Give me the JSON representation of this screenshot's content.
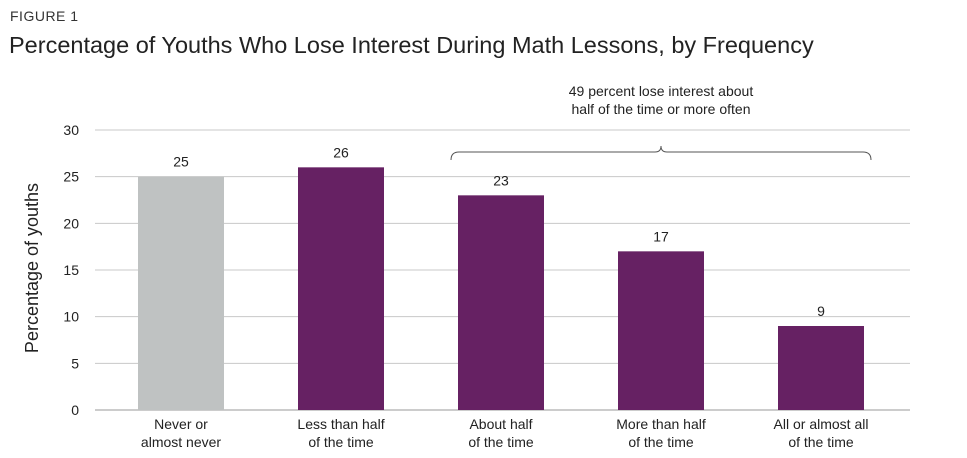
{
  "figure_label": "FIGURE 1",
  "chart_data": {
    "type": "bar",
    "title": "Percentage of Youths Who Lose Interest During Math Lessons, by Frequency",
    "ylabel": "Percentage of youths",
    "xlabel": "",
    "ylim": [
      0,
      30
    ],
    "yticks": [
      0,
      5,
      10,
      15,
      20,
      25,
      30
    ],
    "grid": true,
    "categories": [
      [
        "Never or",
        "almost never"
      ],
      [
        "Less than half",
        "of the time"
      ],
      [
        "About half",
        "of the time"
      ],
      [
        "More than half",
        "of the time"
      ],
      [
        "All or almost all",
        "of the time"
      ]
    ],
    "values": [
      25,
      26,
      23,
      17,
      9
    ],
    "value_labels": [
      "25",
      "26",
      "23",
      "17",
      "9"
    ],
    "bar_colors": [
      "#bfc2c2",
      "#662163",
      "#662163",
      "#662163",
      "#662163"
    ],
    "gridline_color": "#c8c8c8",
    "annotation": {
      "lines": [
        "49 percent lose interest about",
        "half of the time or more often"
      ],
      "bracket_from_category": 2,
      "bracket_to_category": 4
    }
  }
}
